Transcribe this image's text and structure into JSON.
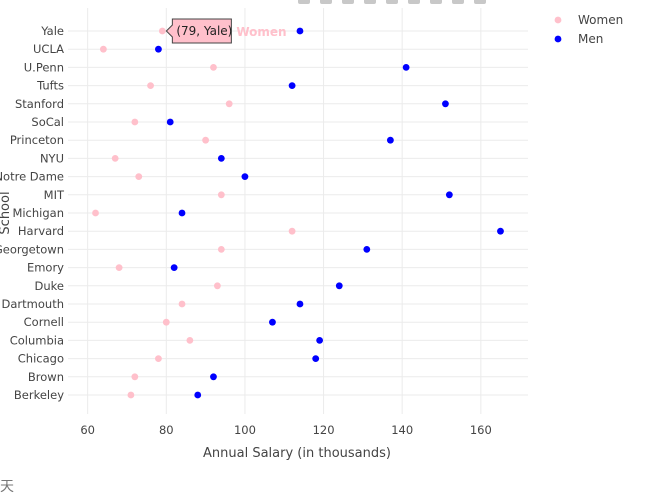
{
  "toolbar": {
    "icons": [
      "camera-icon",
      "zoom-icon",
      "pan-icon",
      "select-icon",
      "lasso-icon",
      "zoom-in-icon",
      "zoom-out-icon",
      "autoscale-icon",
      "reset-icon"
    ]
  },
  "chart_data": {
    "type": "scatter",
    "xlabel": "Annual Salary (in thousands)",
    "ylabel": "School",
    "xlim": [
      55,
      172
    ],
    "xticks": [
      60,
      80,
      100,
      120,
      140,
      160
    ],
    "grid": true,
    "legend_position": "top-right",
    "categories": [
      "Yale",
      "UCLA",
      "U.Penn",
      "Tufts",
      "Stanford",
      "SoCal",
      "Princeton",
      "NYU",
      "Notre Dame",
      "MIT",
      "Michigan",
      "Harvard",
      "Georgetown",
      "Emory",
      "Duke",
      "Dartmouth",
      "Cornell",
      "Columbia",
      "Chicago",
      "Brown",
      "Berkeley"
    ],
    "series": [
      {
        "name": "Women",
        "color": "#FFC0CB",
        "values": [
          79,
          64,
          92,
          76,
          96,
          72,
          90,
          67,
          73,
          94,
          62,
          112,
          94,
          68,
          93,
          84,
          80,
          86,
          78,
          72,
          71
        ]
      },
      {
        "name": "Men",
        "color": "#0000FF",
        "values": [
          114,
          78,
          141,
          112,
          151,
          81,
          137,
          94,
          100,
          152,
          84,
          165,
          131,
          82,
          124,
          114,
          107,
          119,
          118,
          92,
          88
        ]
      }
    ],
    "hover": {
      "point": "(79, Yale)",
      "series": "Women",
      "series_color": "#FFC0CB"
    }
  },
  "glyph": "天"
}
